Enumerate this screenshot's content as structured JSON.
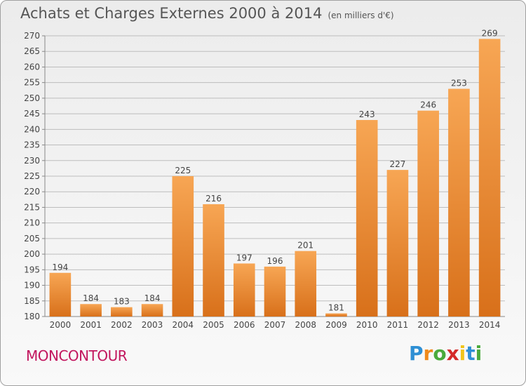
{
  "header": {
    "title": "Achats et Charges Externes 2000 à 2014",
    "unit": "(en milliers d'€)"
  },
  "footer": {
    "commune": "MONCONTOUR",
    "brand": "Proxiti"
  },
  "chart_data": {
    "type": "bar",
    "categories": [
      "2000",
      "2001",
      "2002",
      "2003",
      "2004",
      "2005",
      "2006",
      "2007",
      "2008",
      "2009",
      "2010",
      "2011",
      "2012",
      "2013",
      "2014"
    ],
    "values": [
      194,
      184,
      183,
      184,
      225,
      216,
      197,
      196,
      201,
      181,
      243,
      227,
      246,
      253,
      269
    ],
    "title": "Achats et Charges Externes 2000 à 2014",
    "ylim": [
      180,
      270
    ],
    "yticks": [
      180,
      185,
      190,
      195,
      200,
      205,
      210,
      215,
      220,
      225,
      230,
      235,
      240,
      245,
      250,
      255,
      260,
      265,
      270
    ],
    "grid": true,
    "colors": {
      "bar": "#f0892a",
      "barLight": "#f7a654",
      "barDark": "#d8701a"
    }
  }
}
